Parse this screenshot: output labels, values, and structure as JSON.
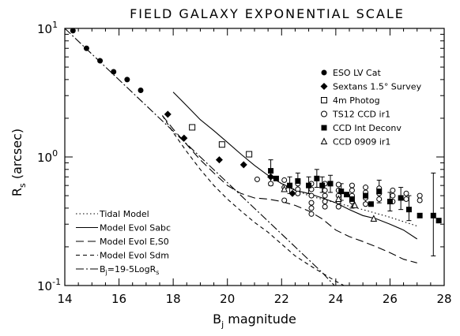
{
  "chart_data": {
    "type": "scatter",
    "title": "FIELD GALAXY EXPONENTIAL SCALE",
    "xlabel": {
      "main": "B",
      "sub": "j",
      "rest": "  magnitude"
    },
    "ylabel": {
      "main": "R",
      "sub": "s",
      "rest": "  (arcsec)"
    },
    "xlim": [
      14,
      28
    ],
    "ylim": [
      0.1,
      10
    ],
    "yscale": "log",
    "grid": false,
    "x_ticks": [
      14,
      16,
      18,
      20,
      22,
      24,
      26,
      28
    ],
    "x_tick_labels": [
      "14",
      "16",
      "18",
      "20",
      "22",
      "24",
      "26",
      "28"
    ],
    "y_ticks": [
      {
        "value": 10,
        "base": "10",
        "exp": "1"
      },
      {
        "value": 1,
        "base": "10",
        "exp": "0"
      },
      {
        "value": 0.1,
        "base": "10",
        "exp": "-1"
      }
    ],
    "points_legend": {
      "placement": "top-right",
      "entries": [
        {
          "marker": "filled-circle",
          "label": "ESO LV Cat"
        },
        {
          "marker": "filled-diamond",
          "label": "Sextans 1.5° Survey"
        },
        {
          "marker": "open-square",
          "label": "4m Photog"
        },
        {
          "marker": "open-circle",
          "label": "TS12 CCD ir1"
        },
        {
          "marker": "filled-square",
          "label": "CCD Int Deconv"
        },
        {
          "marker": "open-triangle",
          "label": "CCD 0909 ir1"
        }
      ]
    },
    "lines_legend": {
      "placement": "bottom-left",
      "entries": [
        {
          "dash": "dotted",
          "text": "Tidal Model"
        },
        {
          "dash": "solid",
          "text": "Model Evol Sabc"
        },
        {
          "dash": "long-dash",
          "text": "Model Evol E,S0"
        },
        {
          "dash": "short-dash",
          "text": "Model Evol Sdm"
        },
        {
          "dash": "dash-dot",
          "text": "=19-5LogR",
          "prefix": "B",
          "prefix_sub": "j",
          "suffix_sub": "s"
        }
      ]
    },
    "series": [
      {
        "marker": "filled-circle",
        "points": [
          [
            14.3,
            9.6
          ],
          [
            14.8,
            7.0
          ],
          [
            15.3,
            5.6
          ],
          [
            15.8,
            4.6
          ],
          [
            16.3,
            4.0
          ],
          [
            16.8,
            3.3
          ]
        ]
      },
      {
        "marker": "filled-diamond",
        "points": [
          [
            17.8,
            2.15
          ],
          [
            18.4,
            1.4
          ],
          [
            19.7,
            0.95
          ],
          [
            20.6,
            0.87
          ],
          [
            21.6,
            0.7
          ],
          [
            22.4,
            0.52
          ]
        ]
      },
      {
        "marker": "open-square",
        "points": [
          [
            18.7,
            1.7
          ],
          [
            19.8,
            1.25
          ],
          [
            20.8,
            1.05
          ]
        ]
      },
      {
        "marker": "open-circle",
        "points": [
          [
            21.1,
            0.67
          ],
          [
            21.6,
            0.62
          ],
          [
            22.1,
            0.66
          ],
          [
            22.1,
            0.58
          ],
          [
            22.1,
            0.46
          ],
          [
            22.6,
            0.62
          ],
          [
            22.6,
            0.56
          ],
          [
            22.6,
            0.52
          ],
          [
            23.1,
            0.62
          ],
          [
            23.1,
            0.56
          ],
          [
            23.1,
            0.5
          ],
          [
            23.1,
            0.44
          ],
          [
            23.1,
            0.4
          ],
          [
            23.1,
            0.36
          ],
          [
            23.6,
            0.62
          ],
          [
            23.6,
            0.55
          ],
          [
            23.6,
            0.5
          ],
          [
            23.6,
            0.45
          ],
          [
            23.6,
            0.41
          ],
          [
            24.1,
            0.61
          ],
          [
            24.1,
            0.55
          ],
          [
            24.1,
            0.5
          ],
          [
            24.1,
            0.45
          ],
          [
            24.1,
            0.41
          ],
          [
            24.6,
            0.6
          ],
          [
            24.6,
            0.55
          ],
          [
            24.6,
            0.5
          ],
          [
            24.6,
            0.45
          ],
          [
            25.1,
            0.58
          ],
          [
            25.1,
            0.53
          ],
          [
            25.1,
            0.48
          ],
          [
            25.1,
            0.43
          ],
          [
            25.6,
            0.57
          ],
          [
            25.6,
            0.52
          ],
          [
            25.6,
            0.47
          ],
          [
            26.1,
            0.55
          ],
          [
            26.1,
            0.5
          ],
          [
            26.1,
            0.45
          ],
          [
            26.6,
            0.52
          ],
          [
            26.6,
            0.47
          ],
          [
            27.1,
            0.5
          ],
          [
            27.1,
            0.46
          ]
        ]
      },
      {
        "marker": "filled-square",
        "points": [
          [
            21.6,
            0.78
          ],
          [
            21.8,
            0.68
          ],
          [
            22.3,
            0.6
          ],
          [
            22.6,
            0.65
          ],
          [
            23.0,
            0.6
          ],
          [
            23.3,
            0.68
          ],
          [
            23.5,
            0.6
          ],
          [
            23.8,
            0.62
          ],
          [
            24.2,
            0.54
          ],
          [
            24.4,
            0.51
          ],
          [
            24.6,
            0.47
          ],
          [
            25.1,
            0.5
          ],
          [
            25.3,
            0.43
          ],
          [
            25.6,
            0.54
          ],
          [
            26.0,
            0.45
          ],
          [
            26.4,
            0.48
          ],
          [
            26.7,
            0.39
          ],
          [
            27.1,
            0.35
          ],
          [
            27.6,
            0.35
          ],
          [
            27.8,
            0.32
          ]
        ],
        "error_bars": [
          [
            21.6,
            0.6,
            0.95
          ],
          [
            22.3,
            0.52,
            0.7
          ],
          [
            22.6,
            0.55,
            0.75
          ],
          [
            23.0,
            0.52,
            0.7
          ],
          [
            23.3,
            0.58,
            0.8
          ],
          [
            23.5,
            0.53,
            0.7
          ],
          [
            23.8,
            0.53,
            0.72
          ],
          [
            24.2,
            0.46,
            0.62
          ],
          [
            24.6,
            0.4,
            0.55
          ],
          [
            25.1,
            0.44,
            0.58
          ],
          [
            25.6,
            0.44,
            0.66
          ],
          [
            26.0,
            0.38,
            0.53
          ],
          [
            26.4,
            0.39,
            0.58
          ],
          [
            26.7,
            0.32,
            0.5
          ],
          [
            27.6,
            0.17,
            0.75
          ]
        ]
      },
      {
        "marker": "open-triangle",
        "points": [
          [
            22.1,
            0.56
          ],
          [
            24.1,
            0.47
          ],
          [
            24.7,
            0.42
          ],
          [
            25.4,
            0.33
          ]
        ]
      }
    ],
    "curves": [
      {
        "name": "Tidal Model",
        "dash": "dotted",
        "points": [
          [
            21.5,
            0.72
          ],
          [
            22.0,
            0.62
          ],
          [
            23.0,
            0.5
          ],
          [
            24.0,
            0.44
          ],
          [
            25.0,
            0.39
          ],
          [
            26.0,
            0.34
          ],
          [
            27.0,
            0.29
          ]
        ]
      },
      {
        "name": "Model Evol Sabc",
        "dash": "solid",
        "points": [
          [
            18.0,
            3.2
          ],
          [
            18.5,
            2.5
          ],
          [
            19.0,
            1.95
          ],
          [
            19.5,
            1.6
          ],
          [
            20.0,
            1.3
          ],
          [
            20.5,
            1.05
          ],
          [
            21.0,
            0.86
          ],
          [
            21.5,
            0.72
          ],
          [
            22.0,
            0.62
          ],
          [
            22.5,
            0.55
          ],
          [
            23.0,
            0.52
          ],
          [
            23.5,
            0.48
          ],
          [
            24.0,
            0.44
          ],
          [
            24.5,
            0.39
          ],
          [
            25.0,
            0.35
          ],
          [
            25.5,
            0.33
          ],
          [
            26.0,
            0.3
          ],
          [
            26.5,
            0.27
          ],
          [
            27.0,
            0.23
          ]
        ]
      },
      {
        "name": "Model Evol E,S0",
        "dash": "long-dash",
        "points": [
          [
            17.6,
            2.1
          ],
          [
            18.0,
            1.65
          ],
          [
            18.5,
            1.25
          ],
          [
            19.0,
            0.95
          ],
          [
            19.5,
            0.75
          ],
          [
            20.0,
            0.6
          ],
          [
            20.5,
            0.52
          ],
          [
            21.0,
            0.48
          ],
          [
            21.5,
            0.47
          ],
          [
            22.0,
            0.45
          ],
          [
            22.5,
            0.42
          ],
          [
            23.0,
            0.38
          ],
          [
            23.5,
            0.33
          ],
          [
            24.0,
            0.27
          ],
          [
            24.5,
            0.24
          ],
          [
            25.0,
            0.22
          ],
          [
            25.5,
            0.2
          ],
          [
            26.0,
            0.18
          ],
          [
            26.5,
            0.16
          ],
          [
            27.0,
            0.15
          ]
        ]
      },
      {
        "name": "Model Evol Sdm",
        "dash": "short-dash",
        "points": [
          [
            17.6,
            2.1
          ],
          [
            18.0,
            1.55
          ],
          [
            18.5,
            1.1
          ],
          [
            19.0,
            0.8
          ],
          [
            19.5,
            0.6
          ],
          [
            20.0,
            0.47
          ],
          [
            20.5,
            0.38
          ],
          [
            21.0,
            0.31
          ],
          [
            21.5,
            0.26
          ],
          [
            22.0,
            0.21
          ],
          [
            22.5,
            0.17
          ],
          [
            23.0,
            0.145
          ],
          [
            23.5,
            0.125
          ],
          [
            24.0,
            0.108
          ],
          [
            24.3,
            0.1
          ]
        ]
      },
      {
        "name": "Bj=19-5LogRs",
        "dash": "dash-dot",
        "points": [
          [
            14.0,
            10.0
          ],
          [
            23.5,
            0.126
          ],
          [
            23.95,
            0.1
          ]
        ]
      }
    ]
  }
}
